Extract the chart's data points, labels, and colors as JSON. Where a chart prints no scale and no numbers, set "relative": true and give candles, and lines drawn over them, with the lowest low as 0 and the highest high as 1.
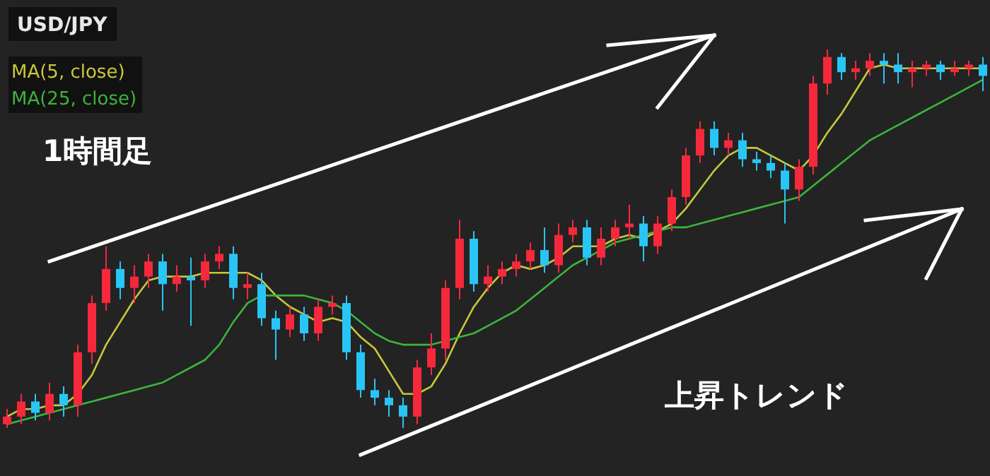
{
  "chart_data": {
    "type": "candlestick",
    "title": "USD/JPY",
    "relative": true,
    "legend": "top left",
    "annotations": [
      "1時間足",
      "上昇トレンド"
    ],
    "categories": [
      null,
      null,
      null,
      null,
      null,
      null,
      null,
      null,
      null,
      null,
      null,
      null,
      null,
      null,
      null,
      null,
      null,
      null,
      null,
      null,
      null,
      null,
      null,
      null,
      null,
      null,
      null,
      null,
      null,
      null,
      null,
      null,
      null,
      null,
      null,
      null,
      null,
      null,
      null,
      null,
      null,
      null,
      null,
      null,
      null,
      null,
      null,
      null,
      null,
      null,
      null,
      null,
      null,
      null,
      null,
      null,
      null,
      null,
      null,
      null,
      null,
      null,
      null,
      null,
      null,
      null,
      null,
      null,
      null,
      null
    ],
    "ohlc": [
      [
        0.01,
        0.05,
        0.0,
        0.03
      ],
      [
        0.03,
        0.09,
        0.01,
        0.07
      ],
      [
        0.07,
        0.09,
        0.02,
        0.04
      ],
      [
        0.04,
        0.12,
        0.02,
        0.09
      ],
      [
        0.09,
        0.11,
        0.03,
        0.06
      ],
      [
        0.06,
        0.22,
        0.03,
        0.2
      ],
      [
        0.2,
        0.35,
        0.17,
        0.33
      ],
      [
        0.33,
        0.48,
        0.31,
        0.42
      ],
      [
        0.42,
        0.44,
        0.34,
        0.37
      ],
      [
        0.37,
        0.43,
        0.33,
        0.4
      ],
      [
        0.4,
        0.46,
        0.37,
        0.44
      ],
      [
        0.44,
        0.46,
        0.31,
        0.38
      ],
      [
        0.38,
        0.43,
        0.36,
        0.4
      ],
      [
        0.4,
        0.45,
        0.27,
        0.39
      ],
      [
        0.39,
        0.46,
        0.37,
        0.44
      ],
      [
        0.44,
        0.48,
        0.42,
        0.46
      ],
      [
        0.46,
        0.48,
        0.34,
        0.37
      ],
      [
        0.37,
        0.41,
        0.34,
        0.38
      ],
      [
        0.38,
        0.41,
        0.27,
        0.29
      ],
      [
        0.29,
        0.31,
        0.18,
        0.26
      ],
      [
        0.26,
        0.32,
        0.24,
        0.3
      ],
      [
        0.3,
        0.32,
        0.23,
        0.25
      ],
      [
        0.25,
        0.34,
        0.23,
        0.32
      ],
      [
        0.32,
        0.35,
        0.3,
        0.33
      ],
      [
        0.33,
        0.35,
        0.18,
        0.2
      ],
      [
        0.2,
        0.22,
        0.08,
        0.1
      ],
      [
        0.1,
        0.13,
        0.06,
        0.08
      ],
      [
        0.08,
        0.1,
        0.03,
        0.06
      ],
      [
        0.06,
        0.08,
        0.0,
        0.03
      ],
      [
        0.03,
        0.18,
        0.01,
        0.16
      ],
      [
        0.16,
        0.25,
        0.14,
        0.21
      ],
      [
        0.21,
        0.39,
        0.18,
        0.37
      ],
      [
        0.37,
        0.55,
        0.34,
        0.5
      ],
      [
        0.5,
        0.52,
        0.36,
        0.38
      ],
      [
        0.38,
        0.43,
        0.36,
        0.4
      ],
      [
        0.4,
        0.44,
        0.38,
        0.42
      ],
      [
        0.42,
        0.46,
        0.4,
        0.44
      ],
      [
        0.44,
        0.49,
        0.42,
        0.47
      ],
      [
        0.47,
        0.53,
        0.41,
        0.43
      ],
      [
        0.43,
        0.54,
        0.41,
        0.51
      ],
      [
        0.51,
        0.55,
        0.49,
        0.53
      ],
      [
        0.53,
        0.55,
        0.43,
        0.45
      ],
      [
        0.45,
        0.53,
        0.43,
        0.5
      ],
      [
        0.5,
        0.55,
        0.48,
        0.53
      ],
      [
        0.53,
        0.59,
        0.5,
        0.54
      ],
      [
        0.54,
        0.56,
        0.44,
        0.48
      ],
      [
        0.48,
        0.56,
        0.46,
        0.54
      ],
      [
        0.54,
        0.63,
        0.52,
        0.61
      ],
      [
        0.61,
        0.74,
        0.59,
        0.72
      ],
      [
        0.72,
        0.81,
        0.7,
        0.79
      ],
      [
        0.79,
        0.81,
        0.72,
        0.74
      ],
      [
        0.74,
        0.78,
        0.72,
        0.76
      ],
      [
        0.76,
        0.78,
        0.69,
        0.71
      ],
      [
        0.71,
        0.73,
        0.68,
        0.7
      ],
      [
        0.7,
        0.72,
        0.66,
        0.68
      ],
      [
        0.68,
        0.7,
        0.54,
        0.63
      ],
      [
        0.63,
        0.71,
        0.6,
        0.69
      ],
      [
        0.69,
        0.93,
        0.67,
        0.91
      ],
      [
        0.91,
        1.0,
        0.88,
        0.98
      ],
      [
        0.98,
        0.99,
        0.92,
        0.94
      ],
      [
        0.94,
        0.97,
        0.92,
        0.95
      ],
      [
        0.95,
        0.99,
        0.93,
        0.97
      ],
      [
        0.97,
        0.99,
        0.91,
        0.96
      ],
      [
        0.96,
        0.99,
        0.91,
        0.94
      ],
      [
        0.94,
        0.97,
        0.9,
        0.95
      ],
      [
        0.95,
        0.97,
        0.93,
        0.96
      ],
      [
        0.96,
        0.97,
        0.92,
        0.94
      ],
      [
        0.94,
        0.97,
        0.93,
        0.95
      ],
      [
        0.95,
        0.97,
        0.93,
        0.96
      ],
      [
        0.96,
        0.98,
        0.89,
        0.93
      ]
    ],
    "colors": [
      "#f5283c",
      "#f5283c",
      "#29c5f6",
      "#f5283c",
      "#29c5f6",
      "#f5283c",
      "#f5283c",
      "#f5283c",
      "#29c5f6",
      "#f5283c",
      "#f5283c",
      "#29c5f6",
      "#f5283c",
      "#29c5f6",
      "#f5283c",
      "#f5283c",
      "#29c5f6",
      "#f5283c",
      "#29c5f6",
      "#29c5f6",
      "#f5283c",
      "#29c5f6",
      "#f5283c",
      "#f5283c",
      "#29c5f6",
      "#29c5f6",
      "#29c5f6",
      "#29c5f6",
      "#29c5f6",
      "#f5283c",
      "#f5283c",
      "#f5283c",
      "#f5283c",
      "#29c5f6",
      "#f5283c",
      "#f5283c",
      "#f5283c",
      "#f5283c",
      "#29c5f6",
      "#f5283c",
      "#f5283c",
      "#29c5f6",
      "#f5283c",
      "#f5283c",
      "#f5283c",
      "#29c5f6",
      "#f5283c",
      "#f5283c",
      "#f5283c",
      "#f5283c",
      "#29c5f6",
      "#f5283c",
      "#29c5f6",
      "#29c5f6",
      "#29c5f6",
      "#29c5f6",
      "#f5283c",
      "#f5283c",
      "#f5283c",
      "#29c5f6",
      "#f5283c",
      "#f5283c",
      "#29c5f6",
      "#29c5f6",
      "#f5283c",
      "#f5283c",
      "#29c5f6",
      "#f5283c",
      "#f5283c",
      "#29c5f6"
    ],
    "series": [
      {
        "name": "MA(5, close)",
        "type": "line",
        "color": "#c8c83c",
        "values": [
          0.03,
          0.05,
          0.05,
          0.06,
          0.06,
          0.09,
          0.14,
          0.22,
          0.28,
          0.34,
          0.39,
          0.4,
          0.4,
          0.4,
          0.41,
          0.41,
          0.41,
          0.41,
          0.39,
          0.35,
          0.32,
          0.3,
          0.28,
          0.29,
          0.28,
          0.24,
          0.21,
          0.15,
          0.09,
          0.09,
          0.11,
          0.17,
          0.25,
          0.32,
          0.37,
          0.41,
          0.43,
          0.42,
          0.43,
          0.45,
          0.48,
          0.48,
          0.48,
          0.5,
          0.51,
          0.5,
          0.52,
          0.54,
          0.58,
          0.63,
          0.68,
          0.72,
          0.74,
          0.74,
          0.72,
          0.7,
          0.68,
          0.72,
          0.78,
          0.83,
          0.89,
          0.95,
          0.96,
          0.95,
          0.95,
          0.95,
          0.95,
          0.95,
          0.95,
          0.95
        ]
      },
      {
        "name": "MA(25, close)",
        "type": "line",
        "color": "#3cb43c",
        "values": [
          0.01,
          0.02,
          0.03,
          0.04,
          0.05,
          0.06,
          0.07,
          0.08,
          0.09,
          0.1,
          0.11,
          0.12,
          0.14,
          0.16,
          0.18,
          0.22,
          0.28,
          0.33,
          0.35,
          0.35,
          0.35,
          0.35,
          0.34,
          0.33,
          0.31,
          0.28,
          0.25,
          0.23,
          0.22,
          0.22,
          0.22,
          0.23,
          0.24,
          0.25,
          0.27,
          0.29,
          0.31,
          0.34,
          0.37,
          0.4,
          0.43,
          0.45,
          0.47,
          0.49,
          0.5,
          0.51,
          0.52,
          0.53,
          0.53,
          0.54,
          0.55,
          0.56,
          0.57,
          0.58,
          0.59,
          0.6,
          0.61,
          0.64,
          0.67,
          0.7,
          0.73,
          0.76,
          0.78,
          0.8,
          0.82,
          0.84,
          0.86,
          0.88,
          0.9,
          0.92
        ]
      }
    ]
  }
}
